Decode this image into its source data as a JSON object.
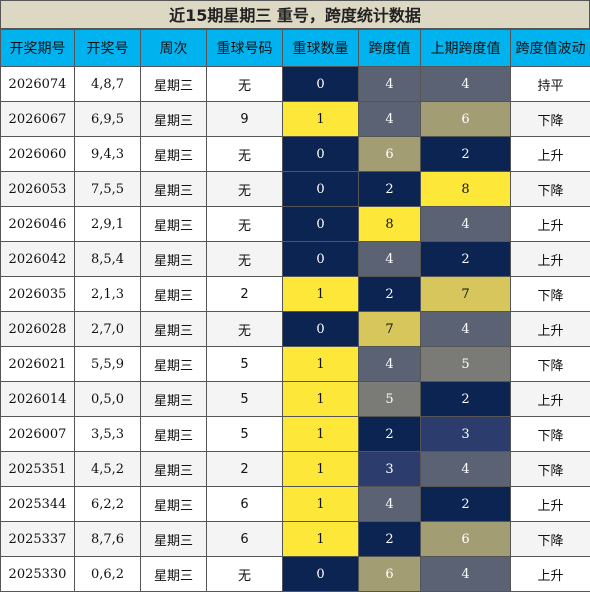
{
  "title": "近15期星期三 重号，跨度统计数据",
  "headers": [
    "开奖期号",
    "开奖号",
    "周次",
    "重球号码",
    "重球数量",
    "跨度值",
    "上期跨度值",
    "跨度值波动"
  ],
  "rows": [
    {
      "issue": "2026074",
      "numbers": "4,8,7",
      "weekday": "星期三",
      "repeat_number": "无",
      "repeat_count": "0",
      "span": "4",
      "prev_span": "4",
      "trend": "持平",
      "repeat_count_color": "navy",
      "span_color": "slate",
      "prev_span_color": "slate"
    },
    {
      "issue": "2026067",
      "numbers": "6,9,5",
      "weekday": "星期三",
      "repeat_number": "9",
      "repeat_count": "1",
      "span": "4",
      "prev_span": "6",
      "trend": "下降",
      "repeat_count_color": "yellow",
      "span_color": "slate",
      "prev_span_color": "khaki"
    },
    {
      "issue": "2026060",
      "numbers": "9,4,3",
      "weekday": "星期三",
      "repeat_number": "无",
      "repeat_count": "0",
      "span": "6",
      "prev_span": "2",
      "trend": "上升",
      "repeat_count_color": "navy",
      "span_color": "khaki",
      "prev_span_color": "navy"
    },
    {
      "issue": "2026053",
      "numbers": "7,5,5",
      "weekday": "星期三",
      "repeat_number": "无",
      "repeat_count": "0",
      "span": "2",
      "prev_span": "8",
      "trend": "下降",
      "repeat_count_color": "navy",
      "span_color": "navy",
      "prev_span_color": "yellow"
    },
    {
      "issue": "2026046",
      "numbers": "2,9,1",
      "weekday": "星期三",
      "repeat_number": "无",
      "repeat_count": "0",
      "span": "8",
      "prev_span": "4",
      "trend": "上升",
      "repeat_count_color": "navy",
      "span_color": "yellow",
      "prev_span_color": "slate"
    },
    {
      "issue": "2026042",
      "numbers": "8,5,4",
      "weekday": "星期三",
      "repeat_number": "无",
      "repeat_count": "0",
      "span": "4",
      "prev_span": "2",
      "trend": "上升",
      "repeat_count_color": "navy",
      "span_color": "slate",
      "prev_span_color": "navy"
    },
    {
      "issue": "2026035",
      "numbers": "2,1,3",
      "weekday": "星期三",
      "repeat_number": "2",
      "repeat_count": "1",
      "span": "2",
      "prev_span": "7",
      "trend": "下降",
      "repeat_count_color": "yellow",
      "span_color": "navy",
      "prev_span_color": "gold"
    },
    {
      "issue": "2026028",
      "numbers": "2,7,0",
      "weekday": "星期三",
      "repeat_number": "无",
      "repeat_count": "0",
      "span": "7",
      "prev_span": "4",
      "trend": "上升",
      "repeat_count_color": "navy",
      "span_color": "gold",
      "prev_span_color": "slate"
    },
    {
      "issue": "2026021",
      "numbers": "5,5,9",
      "weekday": "星期三",
      "repeat_number": "5",
      "repeat_count": "1",
      "span": "4",
      "prev_span": "5",
      "trend": "下降",
      "repeat_count_color": "yellow",
      "span_color": "slate",
      "prev_span_color": "grey"
    },
    {
      "issue": "2026014",
      "numbers": "0,5,0",
      "weekday": "星期三",
      "repeat_number": "5",
      "repeat_count": "1",
      "span": "5",
      "prev_span": "2",
      "trend": "上升",
      "repeat_count_color": "yellow",
      "span_color": "grey",
      "prev_span_color": "navy"
    },
    {
      "issue": "2026007",
      "numbers": "3,5,3",
      "weekday": "星期三",
      "repeat_number": "5",
      "repeat_count": "1",
      "span": "2",
      "prev_span": "3",
      "trend": "下降",
      "repeat_count_color": "yellow",
      "span_color": "navy",
      "prev_span_color": "blue"
    },
    {
      "issue": "2025351",
      "numbers": "4,5,2",
      "weekday": "星期三",
      "repeat_number": "2",
      "repeat_count": "1",
      "span": "3",
      "prev_span": "4",
      "trend": "下降",
      "repeat_count_color": "yellow",
      "span_color": "blue",
      "prev_span_color": "slate"
    },
    {
      "issue": "2025344",
      "numbers": "6,2,2",
      "weekday": "星期三",
      "repeat_number": "6",
      "repeat_count": "1",
      "span": "4",
      "prev_span": "2",
      "trend": "上升",
      "repeat_count_color": "yellow",
      "span_color": "slate",
      "prev_span_color": "navy"
    },
    {
      "issue": "2025337",
      "numbers": "8,7,6",
      "weekday": "星期三",
      "repeat_number": "6",
      "repeat_count": "1",
      "span": "2",
      "prev_span": "6",
      "trend": "下降",
      "repeat_count_color": "yellow",
      "span_color": "navy",
      "prev_span_color": "khaki"
    },
    {
      "issue": "2025330",
      "numbers": "0,6,2",
      "weekday": "星期三",
      "repeat_number": "无",
      "repeat_count": "0",
      "span": "6",
      "prev_span": "4",
      "trend": "上升",
      "repeat_count_color": "navy",
      "span_color": "khaki",
      "prev_span_color": "slate"
    }
  ]
}
